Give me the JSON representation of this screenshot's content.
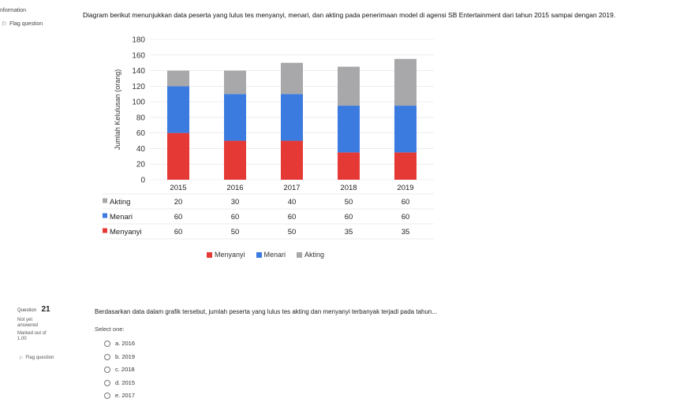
{
  "header": {
    "info_label": "nformation",
    "flag_label": "Flag question"
  },
  "description": "Diagram berikut menunjukkan data peserta yang lulus tes menyanyi, menari, dan akting pada penerimaan model di agensi SB Entertainment dari tahun 2015 sampai dengan 2019.",
  "chart_data": {
    "type": "bar",
    "stacked": true,
    "categories": [
      "2015",
      "2016",
      "2017",
      "2018",
      "2019"
    ],
    "series": [
      {
        "name": "Menyanyi",
        "values": [
          60,
          50,
          50,
          35,
          35
        ],
        "color": "#e53935"
      },
      {
        "name": "Menari",
        "values": [
          60,
          60,
          60,
          60,
          60
        ],
        "color": "#3b7be0"
      },
      {
        "name": "Akting",
        "values": [
          20,
          30,
          40,
          50,
          60
        ],
        "color": "#a8a8ab"
      }
    ],
    "ylabel": "Jumlah Kelulusan (orang)",
    "yticks": [
      "0",
      "20",
      "40",
      "60",
      "80",
      "100",
      "120",
      "140",
      "160",
      "180"
    ],
    "ylim": [
      0,
      180
    ],
    "table_rows": [
      {
        "label": "Akting",
        "values": [
          "20",
          "30",
          "40",
          "50",
          "60"
        ]
      },
      {
        "label": "Menari",
        "values": [
          "60",
          "60",
          "60",
          "60",
          "60"
        ]
      },
      {
        "label": "Menyanyi",
        "values": [
          "60",
          "50",
          "50",
          "35",
          "35"
        ]
      }
    ],
    "legend": [
      "Menyanyi",
      "Menari",
      "Akting"
    ],
    "legend_position": "bottom"
  },
  "question": {
    "label": "Question",
    "number": "21",
    "status_1": "Not yet",
    "status_2": "answered",
    "marked_1": "Marked out of",
    "marked_2": "1.00",
    "flag_label": "Flag question",
    "text": "Berdasarkan data dalam grafik tersebut, jumlah peserta yang lulus tes akting dan menyanyi terbanyak terjadi pada tahun...",
    "select_one": "Select one:",
    "options": [
      "a. 2016",
      "b. 2019",
      "c. 2018",
      "d. 2015",
      "e. 2017"
    ]
  }
}
